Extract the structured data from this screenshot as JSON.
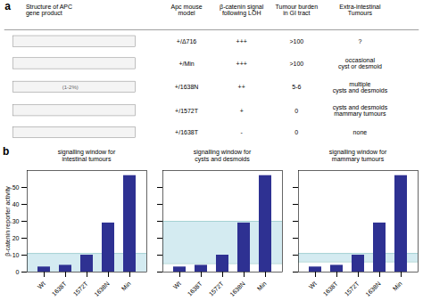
{
  "chart_data": [
    {
      "type": "table",
      "panel": "a",
      "columns": [
        "Structure of APC\ngene product",
        "Apc mouse\nmodel",
        "β-catenin signal\nfollowing LOH",
        "Tumour burden\nin GI tract",
        "Extra-intestinal\nTumours"
      ],
      "rows": [
        [
          null,
          "+/Δ716",
          "+++",
          ">100",
          "?"
        ],
        [
          null,
          "+/Min",
          "+++",
          ">100",
          "occasional\ncyst or desmoid"
        ],
        [
          "(1-2%)",
          "+/1638N",
          "++",
          "5-6",
          "multiple\ncysts and desmoids"
        ],
        [
          null,
          "+/1572T",
          "+",
          "0",
          "cysts and desmoids\nmammary tumours"
        ],
        [
          null,
          "+/1638T",
          "-",
          "0",
          "none"
        ]
      ]
    },
    {
      "type": "bar",
      "panel": "b",
      "title": "signalling window for\nintestinal tumours",
      "categories": [
        "Wt",
        "1638T",
        "1572T",
        "1638N",
        "Min"
      ],
      "values": [
        3,
        4,
        10,
        29,
        57
      ],
      "color": "#2e3192",
      "ylim": [
        0,
        60
      ],
      "yticks": [
        0,
        10,
        20,
        30,
        40,
        50
      ],
      "ylabel": "β-catenin reporter activity",
      "window": [
        0,
        11
      ],
      "window_color": "#cce8ee",
      "hlines": [
        11
      ]
    },
    {
      "type": "bar",
      "title": "signalling window for\ncysts and desmoids",
      "categories": [
        "Wt",
        "1638T",
        "1572T",
        "1638N",
        "Min"
      ],
      "values": [
        3,
        4,
        10,
        29,
        57
      ],
      "color": "#2e3192",
      "ylim": [
        0,
        60
      ],
      "yticks": [
        0,
        10,
        20,
        30,
        40,
        50
      ],
      "tick_labels": "x",
      "window": [
        5,
        30
      ],
      "window_color": "#cce8ee",
      "hlines": [
        5,
        30
      ]
    },
    {
      "type": "bar",
      "title": "signalling window for\nmammary tumours",
      "categories": [
        "Wt",
        "1638T",
        "1572T",
        "1638N",
        "Min"
      ],
      "values": [
        3,
        4,
        10,
        29,
        57
      ],
      "color": "#2e3192",
      "ylim": [
        0,
        60
      ],
      "yticks": [
        0,
        10,
        20,
        30,
        40,
        50
      ],
      "tick_labels": "x",
      "window": [
        6,
        11
      ],
      "window_color": "#cce8ee",
      "hlines": [
        6,
        11
      ]
    }
  ]
}
